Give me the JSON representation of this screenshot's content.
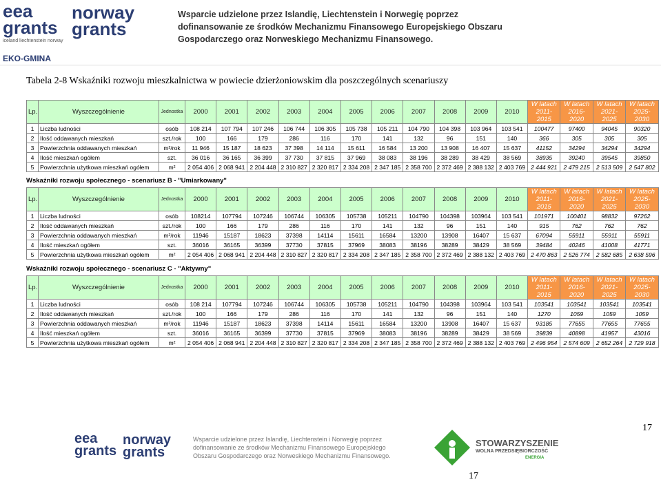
{
  "header": {
    "logo1": "eea grants",
    "logo1_sub": "iceland liechtenstein norway",
    "logo2": "norway grants",
    "lines": [
      "Wsparcie udzielone przez Islandię, Liechtenstein i Norwegię poprzez",
      "dofinansowanie ze środków Mechanizmu Finansowego Europejskiego Obszaru",
      "Gospodarczego oraz Norweskiego Mechanizmu Finansowego."
    ],
    "project": "EKO-GMINA"
  },
  "caption": "Tabela 2-8 Wskaźniki rozwoju mieszkalnictwa w powiecie dzierżoniowskim dla poszczególnych scenariuszy",
  "columns": [
    "Lp.",
    "Wyszczególnienie",
    "Jednostka",
    "2000",
    "2001",
    "2002",
    "2003",
    "2004",
    "2005",
    "2006",
    "2007",
    "2008",
    "2009",
    "2010",
    "W latach 2011-2015",
    "W latach 2016-2020",
    "W latach 2021-2025",
    "W latach 2025-2030"
  ],
  "tables": [
    {
      "rows": [
        [
          "1",
          "Liczba ludności",
          "osób",
          "108 214",
          "107 794",
          "107 246",
          "106 744",
          "106 305",
          "105 738",
          "105 211",
          "104 790",
          "104 398",
          "103 964",
          "103 541",
          "100477",
          "97400",
          "94045",
          "90320"
        ],
        [
          "2",
          "Ilość oddawanych mieszkań",
          "szt./rok",
          "100",
          "166",
          "179",
          "286",
          "116",
          "170",
          "141",
          "132",
          "96",
          "151",
          "140",
          "366",
          "305",
          "305",
          "305"
        ],
        [
          "3",
          "Powierzchnia oddawanych mieszkań",
          "m²/rok",
          "11 946",
          "15 187",
          "18 623",
          "37 398",
          "14 114",
          "15 611",
          "16 584",
          "13 200",
          "13 908",
          "16 407",
          "15 637",
          "41152",
          "34294",
          "34294",
          "34294"
        ],
        [
          "4",
          "Ilość mieszkań ogółem",
          "szt.",
          "36 016",
          "36 165",
          "36 399",
          "37 730",
          "37 815",
          "37 969",
          "38 083",
          "38 196",
          "38 289",
          "38 429",
          "38 569",
          "38935",
          "39240",
          "39545",
          "39850"
        ],
        [
          "5",
          "Powierzchnia użytkowa mieszkań ogółem",
          "m²",
          "2 054 406",
          "2 068 941",
          "2 204 448",
          "2 310 827",
          "2 320 817",
          "2 334 208",
          "2 347 185",
          "2 358 700",
          "2 372 469",
          "2 388 132",
          "2 403 769",
          "2 444 921",
          "2 479 215",
          "2 513 509",
          "2 547 802"
        ]
      ]
    },
    {
      "title": "Wskaźniki rozwoju społecznego - scenariusz B - \"Umiarkowany\"",
      "rows": [
        [
          "1",
          "Liczba ludności",
          "osób",
          "108214",
          "107794",
          "107246",
          "106744",
          "106305",
          "105738",
          "105211",
          "104790",
          "104398",
          "103964",
          "103 541",
          "101971",
          "100401",
          "98832",
          "97262"
        ],
        [
          "2",
          "Ilość oddawanych mieszkań",
          "szt./rok",
          "100",
          "166",
          "179",
          "286",
          "116",
          "170",
          "141",
          "132",
          "96",
          "151",
          "140",
          "915",
          "762",
          "762",
          "762"
        ],
        [
          "3",
          "Powierzchnia oddawanych mieszkań",
          "m²/rok",
          "11946",
          "15187",
          "18623",
          "37398",
          "14114",
          "15611",
          "16584",
          "13200",
          "13908",
          "16407",
          "15 637",
          "67094",
          "55911",
          "55911",
          "55911"
        ],
        [
          "4",
          "Ilość mieszkań ogółem",
          "szt.",
          "36016",
          "36165",
          "36399",
          "37730",
          "37815",
          "37969",
          "38083",
          "38196",
          "38289",
          "38429",
          "38 569",
          "39484",
          "40246",
          "41008",
          "41771"
        ],
        [
          "5",
          "Powierzchnia użytkowa mieszkań ogółem",
          "m²",
          "2 054 406",
          "2 068 941",
          "2 204 448",
          "2 310 827",
          "2 320 817",
          "2 334 208",
          "2 347 185",
          "2 358 700",
          "2 372 469",
          "2 388 132",
          "2 403 769",
          "2 470 863",
          "2 526 774",
          "2 582 685",
          "2 638 596"
        ]
      ]
    },
    {
      "title": "Wskaźniki rozwoju społecznego - scenariusz C - \"Aktywny\"",
      "rows": [
        [
          "1",
          "Liczba ludności",
          "osób",
          "108 214",
          "107794",
          "107246",
          "106744",
          "106305",
          "105738",
          "105211",
          "104790",
          "104398",
          "103964",
          "103 541",
          "103541",
          "103541",
          "103541",
          "103541"
        ],
        [
          "2",
          "Ilość oddawanych mieszkań",
          "szt./rok",
          "100",
          "166",
          "179",
          "286",
          "116",
          "170",
          "141",
          "132",
          "96",
          "151",
          "140",
          "1270",
          "1059",
          "1059",
          "1059"
        ],
        [
          "3",
          "Powierzchnia oddawanych mieszkań",
          "m²/rok",
          "11946",
          "15187",
          "18623",
          "37398",
          "14114",
          "15611",
          "16584",
          "13200",
          "13908",
          "16407",
          "15 637",
          "93185",
          "77655",
          "77655",
          "77655"
        ],
        [
          "4",
          "Ilość mieszkań ogółem",
          "szt.",
          "36016",
          "36165",
          "36399",
          "37730",
          "37815",
          "37969",
          "38083",
          "38196",
          "38289",
          "38429",
          "38 569",
          "39839",
          "40898",
          "41957",
          "43016"
        ],
        [
          "5",
          "Powierzchnia użytkowa mieszkań ogółem",
          "m²",
          "2 054 406",
          "2 068 941",
          "2 204 448",
          "2 310 827",
          "2 320 817",
          "2 334 208",
          "2 347 185",
          "2 358 700",
          "2 372 469",
          "2 388 132",
          "2 403 769",
          "2 496 954",
          "2 574 609",
          "2 652 264",
          "2 729 918"
        ]
      ]
    }
  ],
  "footer": {
    "lines": [
      "Wsparcie udzielone przez Islandię, Liechtenstein i Norwegię poprzez",
      "dofinansowanie ze środków Mechanizmu Finansowego Europejskiego",
      "Obszaru Gospodarczego oraz Norweskiego Mechanizmu Finansowego."
    ],
    "org": "STOWARZYSZENIE",
    "org_sub": "WOLNA PRZEDSIĘBIORCZOŚĆ",
    "org_sub2": "ENERGIA",
    "page_number": "17",
    "page_number_bottom": "17"
  }
}
